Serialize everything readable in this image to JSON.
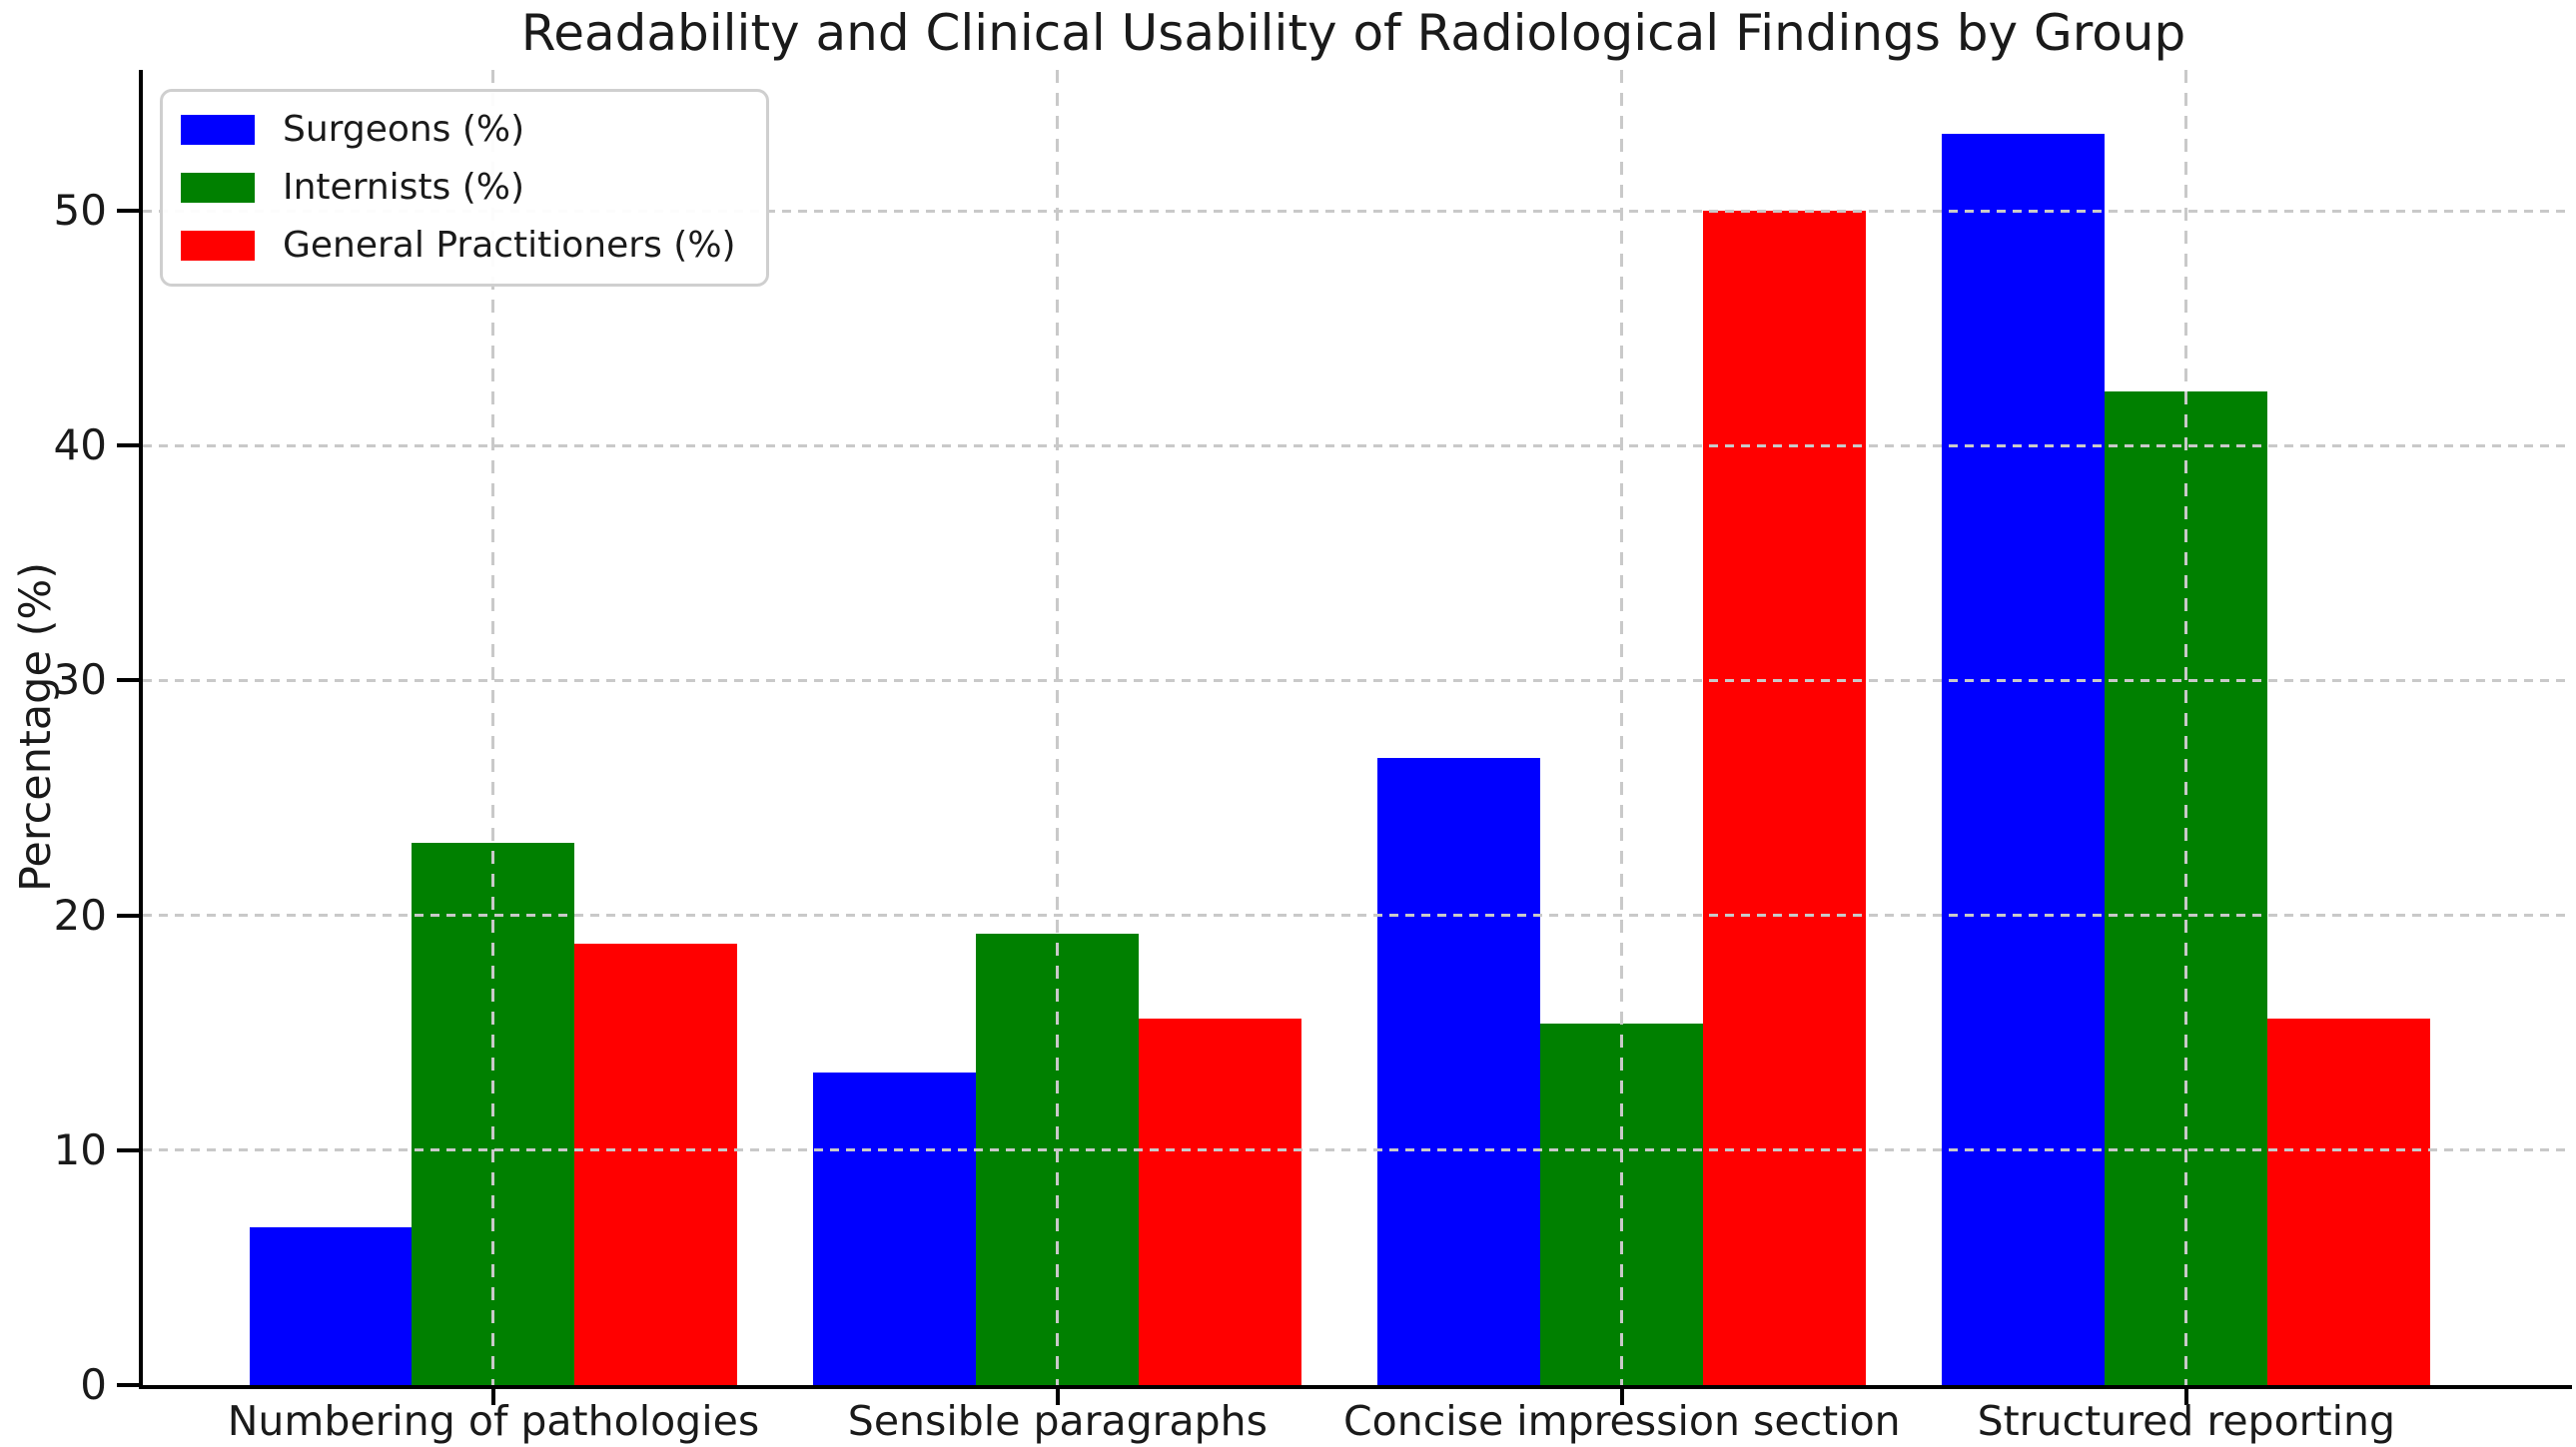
{
  "chart_data": {
    "type": "bar",
    "title": "Readability and Clinical Usability of Radiological Findings by Group",
    "xlabel": "",
    "ylabel": "Percentage (%)",
    "categories": [
      "Numbering of pathologies",
      "Sensible paragraphs",
      "Concise impression section",
      "Structured reporting"
    ],
    "series": [
      {
        "name": "Surgeons (%)",
        "color": "#0000ff",
        "values": [
          6.7,
          13.3,
          26.7,
          53.3
        ]
      },
      {
        "name": "Internists (%)",
        "color": "#008000",
        "values": [
          23.1,
          19.2,
          15.4,
          42.3
        ]
      },
      {
        "name": "General Practitioners (%)",
        "color": "#ff0000",
        "values": [
          18.8,
          15.6,
          50.0,
          15.6
        ]
      }
    ],
    "ylim": [
      0,
      56
    ],
    "yticks": [
      0,
      10,
      20,
      30,
      40,
      50
    ],
    "grid": "dashed gray, horizontal at y-ticks and vertical at category centers, drawn above bars",
    "legend_position": "upper left"
  },
  "colors": {
    "background": "#ffffff",
    "axis": "#000000",
    "grid": "#c9c9c9",
    "text": "#1a1a1a",
    "legend_border": "#cfcfcf"
  }
}
